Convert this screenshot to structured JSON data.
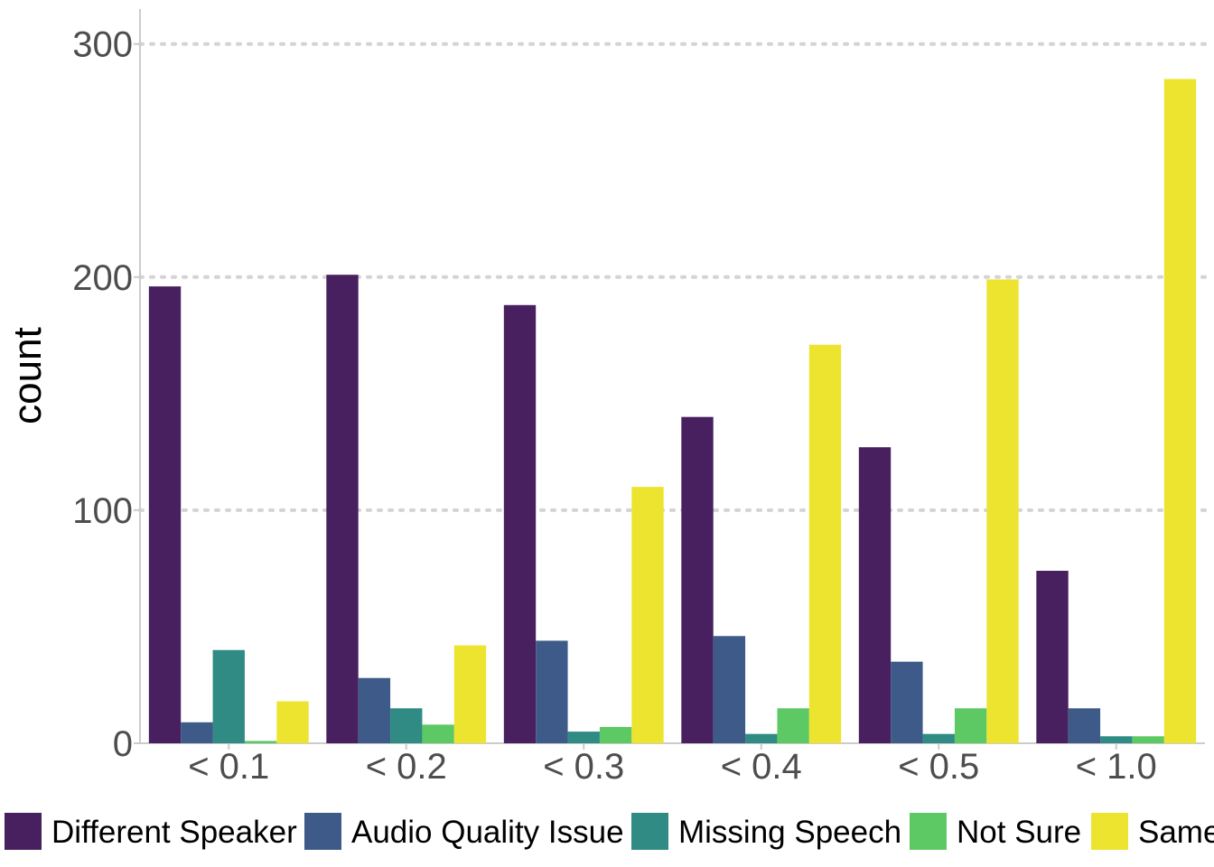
{
  "chart_data": {
    "type": "bar",
    "ylabel": "count",
    "xlabel": "",
    "categories": [
      "< 0.1",
      "< 0.2",
      "< 0.3",
      "< 0.4",
      "< 0.5",
      "< 1.0"
    ],
    "ylim": [
      0,
      315
    ],
    "yticks": [
      0,
      100,
      200,
      300
    ],
    "grid": "horizontal dotted",
    "legend_position": "bottom",
    "series": [
      {
        "name": "Different Speaker",
        "color": "#481F5F",
        "values": [
          196,
          201,
          188,
          140,
          127,
          74
        ]
      },
      {
        "name": "Audio Quality Issue",
        "color": "#3D5A88",
        "values": [
          9,
          28,
          44,
          46,
          35,
          15
        ]
      },
      {
        "name": "Missing Speech",
        "color": "#2F8B83",
        "values": [
          40,
          15,
          5,
          4,
          4,
          3
        ]
      },
      {
        "name": "Not Sure",
        "color": "#5DC964",
        "values": [
          1,
          8,
          7,
          15,
          15,
          3
        ]
      },
      {
        "name": "Same",
        "color": "#EDE430",
        "values": [
          18,
          42,
          110,
          171,
          199,
          285
        ]
      }
    ]
  }
}
